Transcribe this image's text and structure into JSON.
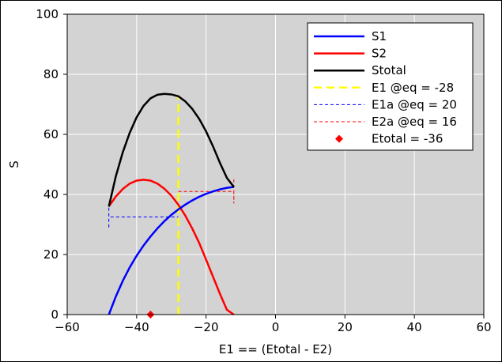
{
  "chart_data": {
    "type": "line",
    "xlabel": "E1 == (Etotal - E2)",
    "ylabel": "S",
    "xlim": [
      -60,
      60
    ],
    "ylim": [
      0,
      100
    ],
    "xticks": [
      -60,
      -40,
      -20,
      0,
      20,
      40,
      60
    ],
    "yticks": [
      0,
      20,
      40,
      60,
      80,
      100
    ],
    "xtick_labels": [
      "−60",
      "−40",
      "−20",
      "0",
      "20",
      "40",
      "60"
    ],
    "ytick_labels": [
      "0",
      "20",
      "40",
      "60",
      "80",
      "100"
    ],
    "grid": true,
    "plot_background": "#d3d3d3",
    "legend_position": "top-right",
    "series": [
      {
        "name": "S1",
        "kind": "line",
        "color": "#0000ff",
        "dash": "solid",
        "x": [
          -48,
          -46,
          -44,
          -42,
          -40,
          -38,
          -36,
          -34,
          -32,
          -30,
          -28,
          -26,
          -24,
          -22,
          -20,
          -18,
          -16,
          -14,
          -12
        ],
        "y": [
          0.0,
          6.0,
          11.2,
          15.7,
          19.6,
          23.0,
          26.0,
          28.7,
          31.1,
          33.2,
          35.0,
          36.6,
          38.0,
          39.2,
          40.2,
          41.0,
          41.7,
          42.2,
          42.5
        ]
      },
      {
        "name": "S2",
        "kind": "line",
        "color": "#ff0000",
        "dash": "solid",
        "x": [
          -48,
          -46,
          -44,
          -42,
          -40,
          -38,
          -36,
          -34,
          -32,
          -30,
          -28,
          -26,
          -24,
          -22,
          -20,
          -18,
          -16,
          -14,
          -12
        ],
        "y": [
          36.0,
          39.3,
          41.8,
          43.6,
          44.6,
          44.9,
          44.6,
          43.6,
          41.9,
          39.6,
          36.6,
          33.0,
          28.7,
          23.9,
          18.3,
          12.6,
          6.9,
          1.6,
          0.0
        ]
      },
      {
        "name": "Stotal",
        "kind": "line",
        "color": "#000000",
        "dash": "solid",
        "x": [
          -48,
          -46,
          -44,
          -42,
          -40,
          -38,
          -36,
          -34,
          -32,
          -30,
          -28,
          -26,
          -24,
          -22,
          -20,
          -18,
          -16,
          -14,
          -12
        ],
        "y": [
          36.0,
          46.0,
          54.0,
          60.5,
          65.7,
          69.5,
          72.0,
          73.2,
          73.5,
          73.3,
          72.7,
          71.0,
          68.5,
          65.2,
          61.0,
          56.0,
          50.5,
          45.5,
          42.5
        ]
      },
      {
        "name": "E1 @eq = -28",
        "kind": "line",
        "color": "#ffff00",
        "dash": "long",
        "x": [
          -28,
          -28
        ],
        "y": [
          0,
          73
        ]
      },
      {
        "name": "E1a @eq = 20",
        "kind": "line",
        "color": "#0000ff",
        "dash": "short",
        "x": [
          -48,
          -48,
          -48,
          -28
        ],
        "y": [
          29,
          36,
          32.5,
          32.5
        ]
      },
      {
        "name": "E2a @eq = 16",
        "kind": "line",
        "color": "#ff0000",
        "dash": "short",
        "x": [
          -28,
          -12,
          -12,
          -12
        ],
        "y": [
          41,
          41,
          37,
          45
        ]
      },
      {
        "name": "Etotal = -36",
        "kind": "marker",
        "color": "#ff0000",
        "marker": "diamond",
        "x": [
          -36
        ],
        "y": [
          0
        ]
      }
    ]
  }
}
